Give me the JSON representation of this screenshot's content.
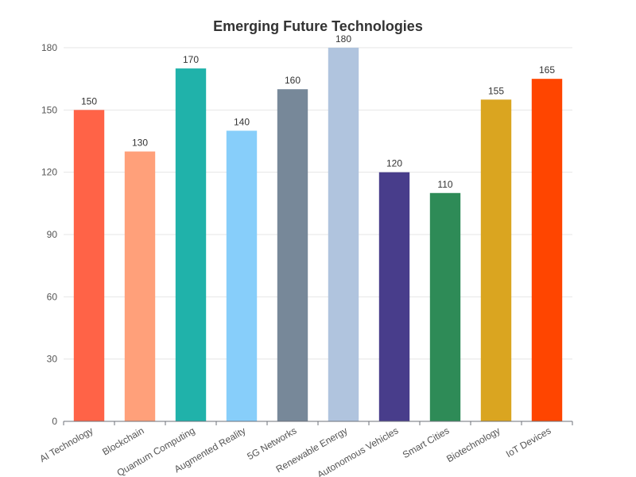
{
  "chart_data": {
    "type": "bar",
    "title": "Emerging Future Technologies",
    "xlabel": "",
    "ylabel": "",
    "categories": [
      "AI Technology",
      "Blockchain",
      "Quantum Computing",
      "Augmented Reality",
      "5G Networks",
      "Renewable Energy",
      "Autonomous Vehicles",
      "Smart Cities",
      "Biotechnology",
      "IoT Devices"
    ],
    "values": [
      150,
      130,
      170,
      140,
      160,
      180,
      120,
      110,
      155,
      165
    ],
    "colors": [
      "#ff6347",
      "#ffa07a",
      "#20b2aa",
      "#87cefa",
      "#778899",
      "#b0c4de",
      "#483d8b",
      "#2e8b57",
      "#daa520",
      "#ff4500"
    ],
    "ylim": [
      0,
      180
    ],
    "yticks": [
      0,
      30,
      60,
      90,
      120,
      150,
      180
    ],
    "grid": true,
    "legend": "none",
    "data_labels": true
  }
}
